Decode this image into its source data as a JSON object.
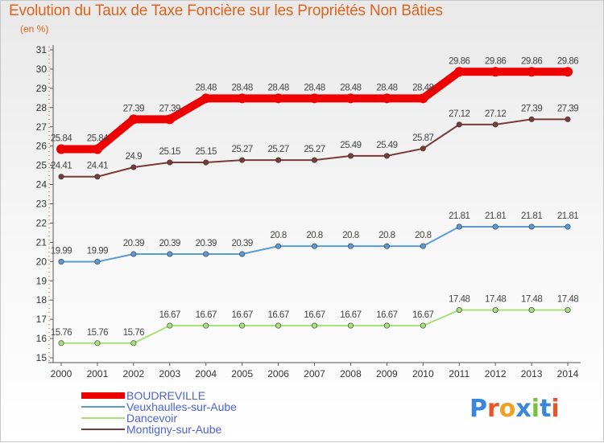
{
  "title": "Evolution du Taux de Taxe Foncière sur les Propriétés Non Bâties",
  "unit": "(en %)",
  "logo": {
    "letters": [
      "P",
      "r",
      "o",
      "x",
      "i",
      "t",
      "i"
    ],
    "colors": [
      "#3a86d8",
      "#e8552c",
      "#f0a020",
      "#3a86d8",
      "#7cc040",
      "#3a86d8",
      "#e8552c"
    ]
  },
  "chart_data": {
    "type": "line",
    "title": "Evolution du Taux de Taxe Foncière sur les Propriétés Non Bâties",
    "ylabel": "(en %)",
    "xlabel": "",
    "x": [
      "2000",
      "2001",
      "2002",
      "2003",
      "2004",
      "2005",
      "2006",
      "2007",
      "2008",
      "2009",
      "2010",
      "2011",
      "2012",
      "2013",
      "2014"
    ],
    "ylim": [
      15,
      31
    ],
    "yticks": [
      "15",
      "16",
      "17",
      "18",
      "19",
      "20",
      "21",
      "22",
      "23",
      "24",
      "25",
      "26",
      "27",
      "28",
      "29",
      "30",
      "31"
    ],
    "grid": false,
    "legend_position": "bottom-left",
    "series": [
      {
        "name": "BOUDREVILLE",
        "color": "#ee0000",
        "thick": true,
        "values": [
          25.84,
          25.84,
          27.39,
          27.39,
          28.48,
          28.48,
          28.48,
          28.48,
          28.48,
          28.48,
          28.48,
          29.86,
          29.86,
          29.86,
          29.86
        ],
        "labels": [
          "25.84",
          "25.84",
          "27.39",
          "27.39",
          "28.48",
          "28.48",
          "28.48",
          "28.48",
          "28.48",
          "28.48",
          "28.48",
          "29.86",
          "29.86",
          "29.86",
          "29.86"
        ]
      },
      {
        "name": "Veuxhaulles-sur-Aube",
        "color": "#5b9bd5",
        "thick": false,
        "values": [
          19.99,
          19.99,
          20.39,
          20.39,
          20.39,
          20.39,
          20.8,
          20.8,
          20.8,
          20.8,
          20.8,
          21.81,
          21.81,
          21.81,
          21.81
        ],
        "labels": [
          "19.99",
          "19.99",
          "20.39",
          "20.39",
          "20.39",
          "20.39",
          "20.8",
          "20.8",
          "20.8",
          "20.8",
          "20.8",
          "21.81",
          "21.81",
          "21.81",
          "21.81"
        ]
      },
      {
        "name": "Dancevoir",
        "color": "#a8e07a",
        "thick": false,
        "values": [
          15.76,
          15.76,
          15.76,
          16.67,
          16.67,
          16.67,
          16.67,
          16.67,
          16.67,
          16.67,
          16.67,
          17.48,
          17.48,
          17.48,
          17.48
        ],
        "labels": [
          "15.76",
          "15.76",
          "15.76",
          "16.67",
          "16.67",
          "16.67",
          "16.67",
          "16.67",
          "16.67",
          "16.67",
          "16.67",
          "17.48",
          "17.48",
          "17.48",
          "17.48"
        ]
      },
      {
        "name": "Montigny-sur-Aube",
        "color": "#7b3a3a",
        "thick": false,
        "values": [
          24.41,
          24.41,
          24.9,
          25.15,
          25.15,
          25.27,
          25.27,
          25.27,
          25.49,
          25.49,
          25.87,
          27.12,
          27.12,
          27.39,
          27.39
        ],
        "labels": [
          "24.41",
          "24.41",
          "24.9",
          "25.15",
          "25.15",
          "25.27",
          "25.27",
          "25.27",
          "25.49",
          "25.49",
          "25.87",
          "27.12",
          "27.12",
          "27.39",
          "27.39"
        ]
      }
    ]
  }
}
